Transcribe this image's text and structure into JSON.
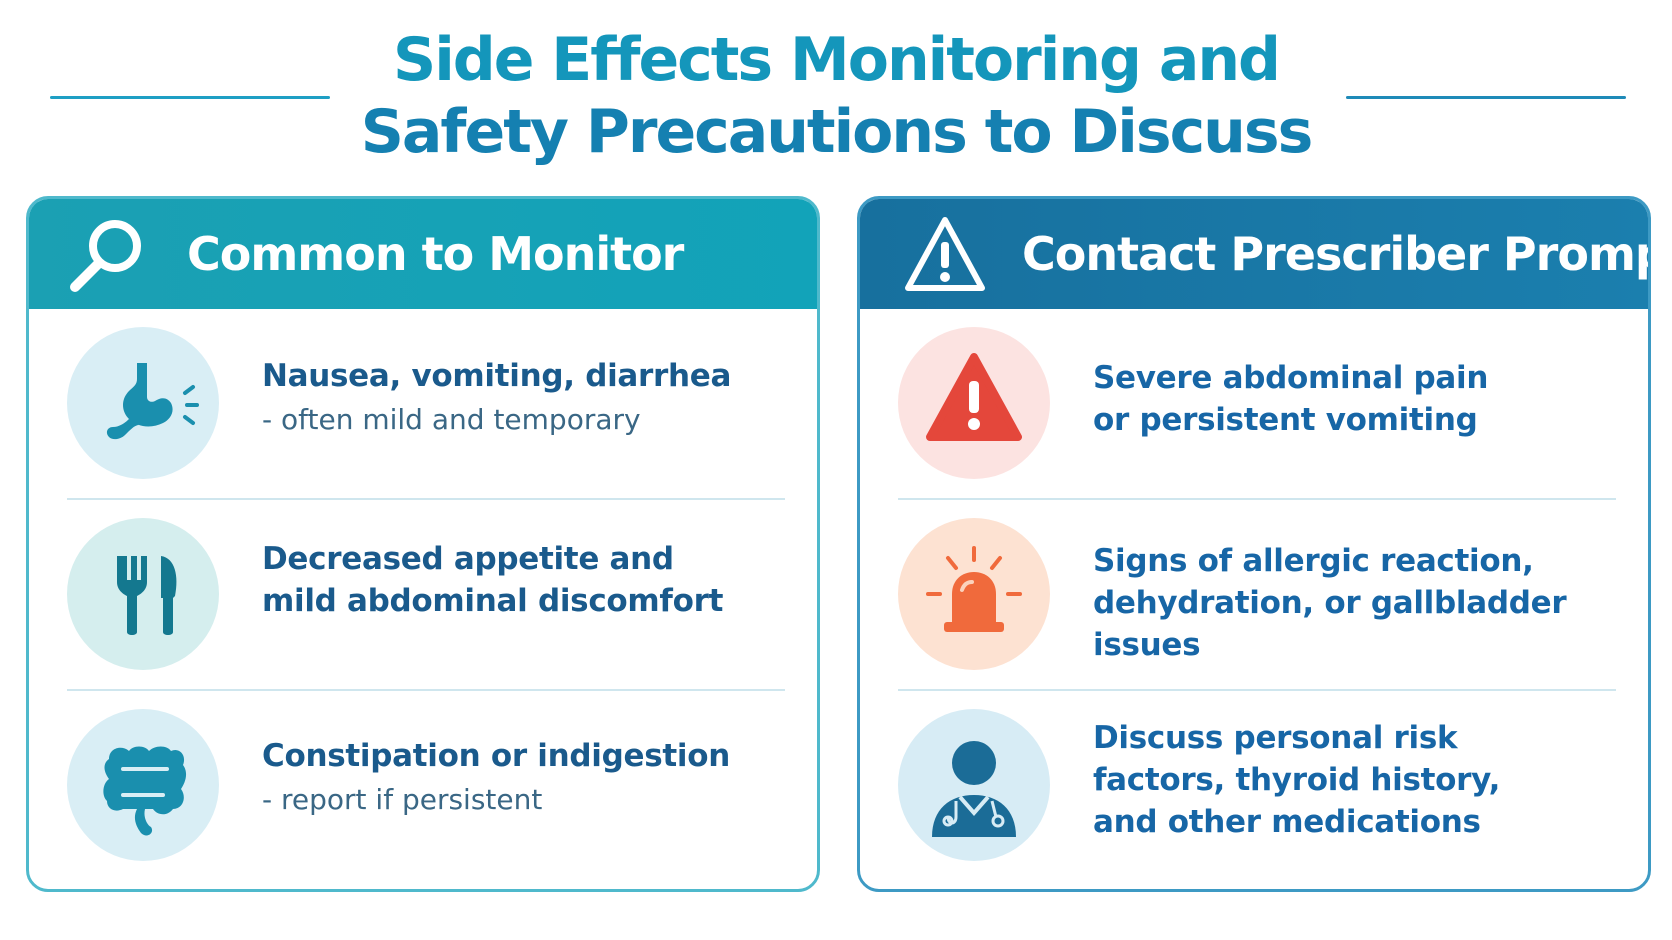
{
  "page": {
    "title_line1": "Side Effects Monitoring and",
    "title_line2": "Safety Precautions to Discuss"
  },
  "left_panel": {
    "header": "Common to Monitor",
    "header_icon": "search-icon",
    "items": [
      {
        "icon": "stomach-icon",
        "title": "Nausea, vomiting, diarrhea",
        "subtitle": "- often mild and temporary"
      },
      {
        "icon": "utensils-icon",
        "title": "Decreased appetite and mild abdominal discomfort",
        "subtitle": ""
      },
      {
        "icon": "intestine-icon",
        "title": "Constipation or indigestion",
        "subtitle": "- report if persistent"
      }
    ]
  },
  "right_panel": {
    "header": "Contact Prescriber Promptly",
    "header_icon": "warning-icon",
    "items": [
      {
        "icon": "warning-icon",
        "title": "Severe abdominal pain or persistent vomiting"
      },
      {
        "icon": "alarm-siren-icon",
        "title": "Signs of allergic reaction, dehydration, or gallbladder issues"
      },
      {
        "icon": "doctor-icon",
        "title": "Discuss personal risk factors, thyroid history, and other medications"
      }
    ]
  },
  "colors": {
    "title": "#1283ad",
    "left_header": "#12a3b9",
    "right_header": "#17709e",
    "alert_red": "#e4473b",
    "alert_orange": "#f06a3c"
  }
}
